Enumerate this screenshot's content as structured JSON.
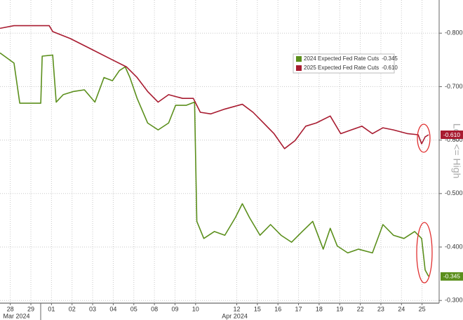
{
  "chart_data": {
    "type": "line",
    "ylabel": "Low <= High",
    "xlim": [
      0,
      21.33
    ],
    "ylim": [
      -0.295,
      -0.862
    ],
    "yticks": [
      {
        "value": -0.8,
        "label": "-0.800"
      },
      {
        "value": -0.7,
        "label": "-0.700"
      },
      {
        "value": -0.6,
        "label": "-0.600"
      },
      {
        "value": -0.5,
        "label": "-0.500"
      },
      {
        "value": -0.4,
        "label": "-0.400"
      },
      {
        "value": -0.3,
        "label": "-0.300"
      }
    ],
    "xticks": [
      {
        "value": 0.5,
        "label": "28"
      },
      {
        "value": 1.5,
        "label": "29"
      },
      {
        "value": 2.5,
        "label": "01"
      },
      {
        "value": 3.5,
        "label": "02"
      },
      {
        "value": 4.5,
        "label": "03"
      },
      {
        "value": 5.5,
        "label": "04"
      },
      {
        "value": 6.5,
        "label": "05"
      },
      {
        "value": 7.5,
        "label": "08"
      },
      {
        "value": 8.5,
        "label": "09"
      },
      {
        "value": 9.5,
        "label": "10"
      },
      {
        "value": 11.5,
        "label": "12"
      },
      {
        "value": 12.5,
        "label": "15"
      },
      {
        "value": 13.5,
        "label": "16"
      },
      {
        "value": 14.5,
        "label": "17"
      },
      {
        "value": 15.5,
        "label": "18"
      },
      {
        "value": 16.5,
        "label": "19"
      },
      {
        "value": 17.5,
        "label": "22"
      },
      {
        "value": 18.5,
        "label": "23"
      },
      {
        "value": 19.5,
        "label": "24"
      },
      {
        "value": 20.5,
        "label": "25"
      }
    ],
    "x_groups": [
      {
        "value": 0.8,
        "label": "Mar 2024"
      },
      {
        "value": 11.4,
        "label": "Apr 2024"
      }
    ],
    "grid": true,
    "legend": "upper right",
    "series": [
      {
        "name": "2024 Expected Fed Rate Cuts",
        "last_label": "-0.345",
        "color": "#5b8f1c",
        "x": [
          0,
          0.68,
          0.96,
          1.98,
          2.05,
          2.56,
          2.73,
          3.07,
          3.58,
          4.1,
          4.61,
          5.05,
          5.46,
          5.8,
          6.08,
          6.31,
          6.66,
          7.17,
          7.68,
          8.19,
          8.53,
          9.04,
          9.45,
          9.56,
          9.9,
          10.41,
          10.92,
          11.43,
          11.77,
          12.12,
          12.63,
          13.14,
          13.65,
          14.16,
          14.68,
          15.19,
          15.7,
          16.04,
          16.38,
          16.89,
          17.41,
          18.09,
          18.6,
          19.11,
          19.62,
          20.14,
          20.48,
          20.65,
          20.82
        ],
        "values": [
          -0.763,
          -0.744,
          -0.669,
          -0.669,
          -0.757,
          -0.759,
          -0.671,
          -0.685,
          -0.691,
          -0.694,
          -0.671,
          -0.717,
          -0.711,
          -0.73,
          -0.737,
          -0.717,
          -0.678,
          -0.632,
          -0.619,
          -0.632,
          -0.665,
          -0.665,
          -0.671,
          -0.448,
          -0.416,
          -0.429,
          -0.422,
          -0.455,
          -0.481,
          -0.455,
          -0.422,
          -0.442,
          -0.422,
          -0.409,
          -0.429,
          -0.448,
          -0.396,
          -0.435,
          -0.402,
          -0.389,
          -0.396,
          -0.389,
          -0.442,
          -0.422,
          -0.416,
          -0.429,
          -0.416,
          -0.357,
          -0.345
        ]
      },
      {
        "name": "2025 Expected Fed Rate Cuts",
        "last_label": "-0.610",
        "color": "#a81b30",
        "x": [
          0,
          0.68,
          2.39,
          2.56,
          3.41,
          4.44,
          5.46,
          6.14,
          6.66,
          7.17,
          7.68,
          8.19,
          8.87,
          9.39,
          9.73,
          10.24,
          10.92,
          11.77,
          12.29,
          12.8,
          13.31,
          13.82,
          14.33,
          14.85,
          15.36,
          16.04,
          16.55,
          17.06,
          17.58,
          18.09,
          18.6,
          19.11,
          19.8,
          20.31,
          20.48,
          20.65,
          20.82
        ],
        "values": [
          -0.809,
          -0.814,
          -0.814,
          -0.803,
          -0.79,
          -0.77,
          -0.75,
          -0.737,
          -0.717,
          -0.691,
          -0.671,
          -0.685,
          -0.678,
          -0.678,
          -0.652,
          -0.649,
          -0.658,
          -0.667,
          -0.652,
          -0.632,
          -0.612,
          -0.584,
          -0.599,
          -0.626,
          -0.632,
          -0.645,
          -0.612,
          -0.619,
          -0.626,
          -0.612,
          -0.623,
          -0.619,
          -0.612,
          -0.61,
          -0.593,
          -0.606,
          -0.61
        ]
      }
    ]
  }
}
